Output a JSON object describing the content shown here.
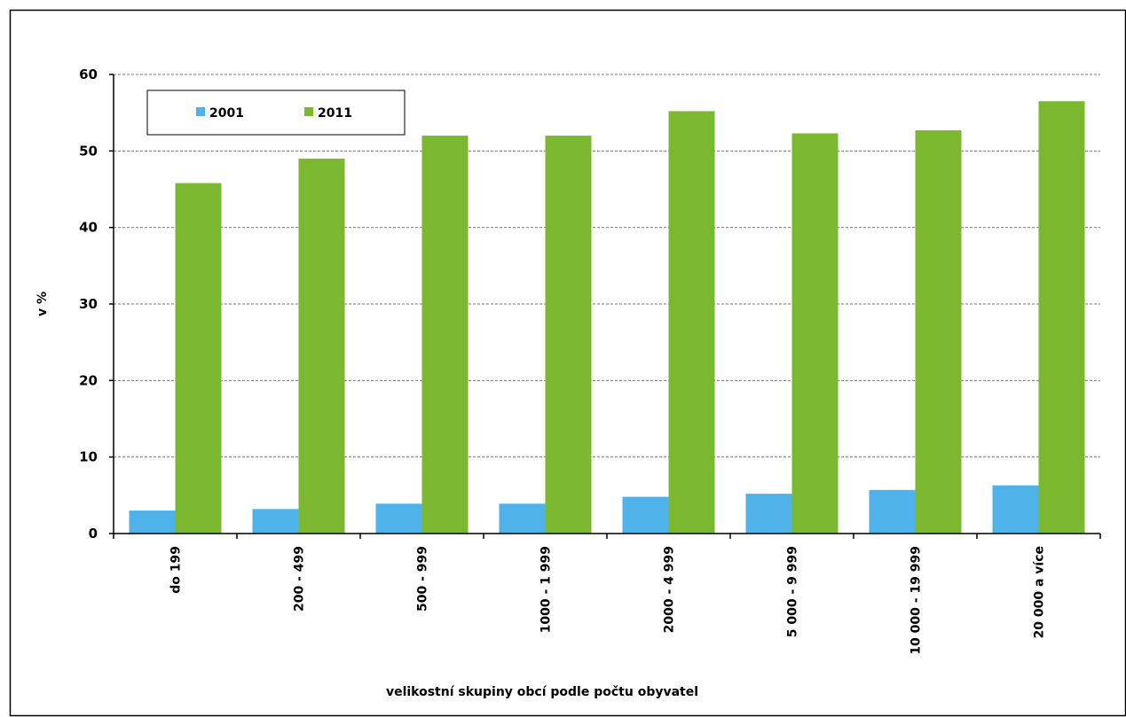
{
  "chart_data": {
    "type": "bar",
    "title": "",
    "xlabel": "velikostní skupiny obcí podle počtu obyvatel",
    "ylabel": "v %",
    "ylim": [
      0,
      60
    ],
    "yticks": [
      0,
      10,
      20,
      30,
      40,
      50,
      60
    ],
    "grid": true,
    "legend_position": "top-left",
    "categories": [
      "do  199",
      "200 - 499",
      "500 - 999",
      "1000 - 1 999",
      "2000 - 4 999",
      "5 000 - 9 999",
      "10 000 - 19 999",
      "20 000 a více"
    ],
    "series": [
      {
        "name": "2001",
        "color": "#4fb3ea",
        "values": [
          3.0,
          3.2,
          3.9,
          3.9,
          4.8,
          5.2,
          5.7,
          6.3
        ]
      },
      {
        "name": "2011",
        "color": "#7cb82f",
        "values": [
          45.8,
          49.0,
          52.0,
          52.0,
          55.2,
          52.3,
          52.7,
          56.5
        ]
      }
    ]
  }
}
